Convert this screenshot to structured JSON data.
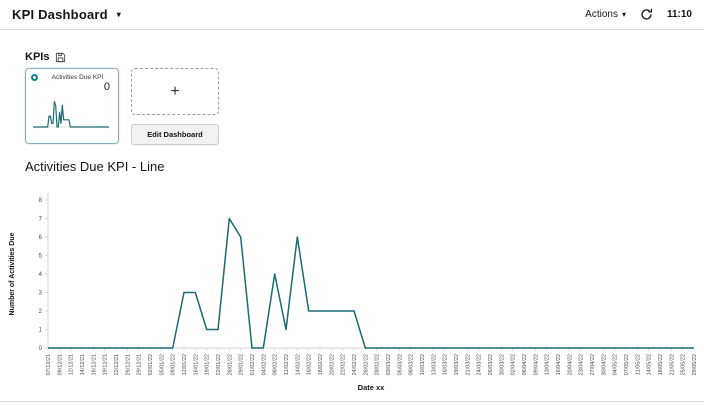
{
  "header": {
    "title": "KPI Dashboard",
    "actions_label": "Actions",
    "time": "11:10"
  },
  "kpis_section": {
    "label": "KPIs"
  },
  "kpi_card": {
    "title": "Activities Due KPI",
    "value": "0"
  },
  "add_card": {
    "plus_label": "+"
  },
  "edit_button": {
    "label": "Edit Dashboard"
  },
  "chart_section": {
    "title": "Activities Due KPI - Line"
  },
  "chart_data": {
    "type": "line",
    "title": "Activities Due KPI - Line",
    "xlabel": "Date xx",
    "ylabel": "Number of Activities Due",
    "ylim": [
      0,
      8
    ],
    "yticks": [
      0,
      1,
      2,
      3,
      4,
      5,
      6,
      7,
      8
    ],
    "grid": false,
    "legend": "none",
    "line_color": "#1a6b75",
    "axis_color": "#d5d5d5",
    "tick_label_color": "#4a4a4a",
    "categories": [
      "07/12/21",
      "09/12/21",
      "12/12/21",
      "14/12/21",
      "16/12/21",
      "19/12/21",
      "22/12/21",
      "26/12/21",
      "29/12/21",
      "02/01/22",
      "05/01/22",
      "09/01/22",
      "12/01/22",
      "16/01/22",
      "19/01/22",
      "22/01/22",
      "26/01/22",
      "29/01/22",
      "01/02/22",
      "04/02/22",
      "08/02/22",
      "11/02/22",
      "14/02/22",
      "16/02/22",
      "18/02/22",
      "20/02/22",
      "22/02/22",
      "24/02/22",
      "26/02/22",
      "28/02/22",
      "03/03/22",
      "05/03/22",
      "08/03/22",
      "10/03/22",
      "13/03/22",
      "16/03/22",
      "19/03/22",
      "21/03/22",
      "24/03/22",
      "26/03/22",
      "30/03/22",
      "02/04/22",
      "06/04/22",
      "09/04/22",
      "13/04/22",
      "16/04/22",
      "20/04/22",
      "23/04/22",
      "27/04/22",
      "30/04/22",
      "04/05/22",
      "07/05/22",
      "11/05/22",
      "14/05/22",
      "18/05/22",
      "21/05/22",
      "25/05/22",
      "29/05/22"
    ],
    "values": [
      0,
      0,
      0,
      0,
      0,
      0,
      0,
      0,
      0,
      0,
      0,
      0,
      3,
      3,
      1,
      1,
      7,
      6,
      0,
      0,
      4,
      1,
      6,
      2,
      2,
      2,
      2,
      2,
      0,
      0,
      0,
      0,
      0,
      0,
      0,
      0,
      0,
      0,
      0,
      0,
      0,
      0,
      0,
      0,
      0,
      0,
      0,
      0,
      0,
      0,
      0,
      0,
      0,
      0,
      0,
      0,
      0,
      0
    ]
  }
}
